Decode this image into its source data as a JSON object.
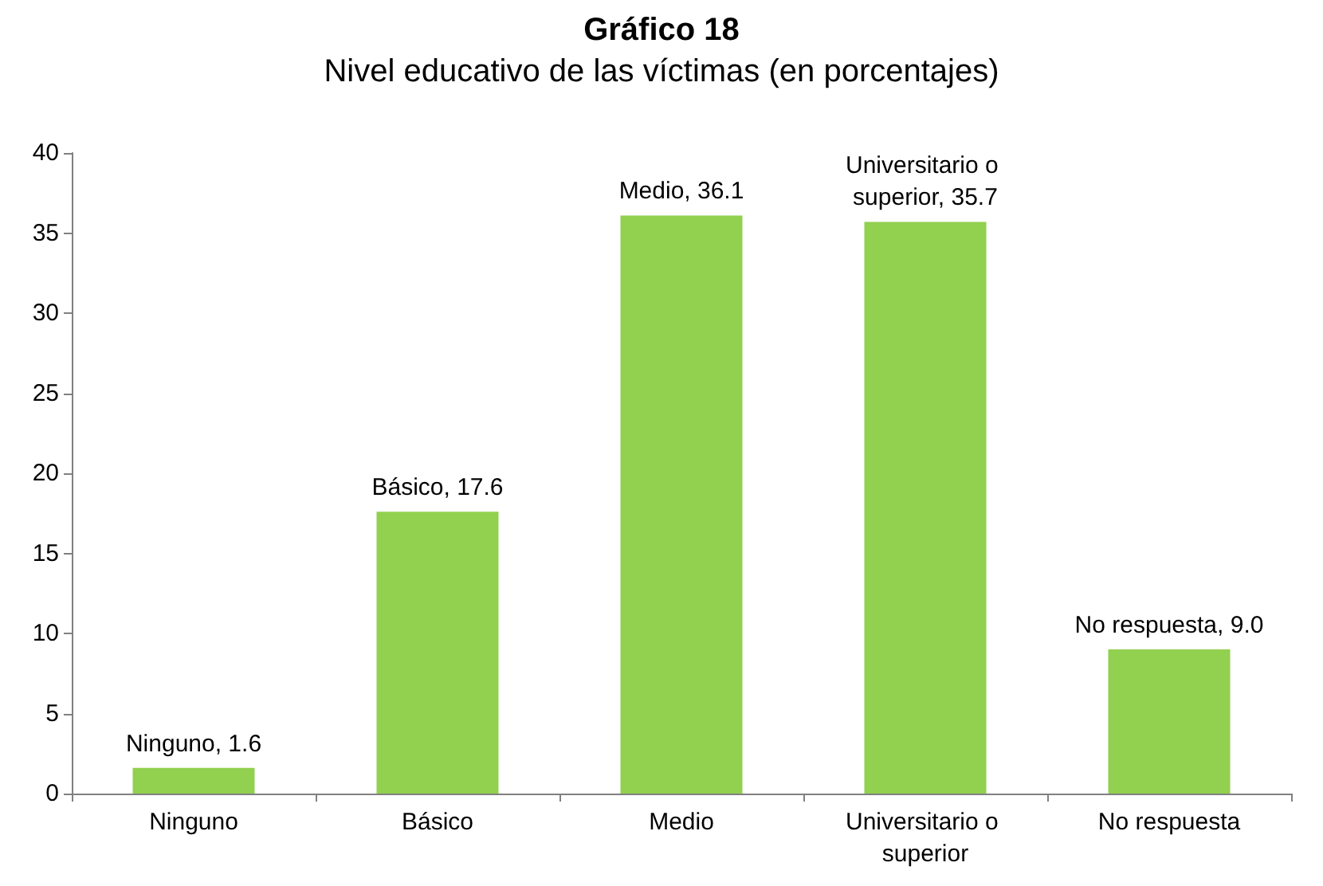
{
  "chart_data": {
    "type": "bar",
    "title": "Gráfico 18",
    "subtitle": "Nivel educativo de las víctimas (en porcentajes)",
    "categories": [
      "Ninguno",
      "Básico",
      "Medio",
      "Universitario o superior",
      "No respuesta"
    ],
    "values": [
      1.6,
      17.6,
      36.1,
      35.7,
      9.0
    ],
    "value_labels": [
      "Ninguno, 1.6",
      "Básico, 17.6",
      "Medio, 36.1",
      "Universitario o superior, 35.7",
      "No respuesta, 9.0"
    ],
    "color": "#92d050",
    "ylim": [
      0,
      40
    ],
    "yticks": [
      0,
      5,
      10,
      15,
      20,
      25,
      30,
      35,
      40
    ],
    "grid": false
  }
}
